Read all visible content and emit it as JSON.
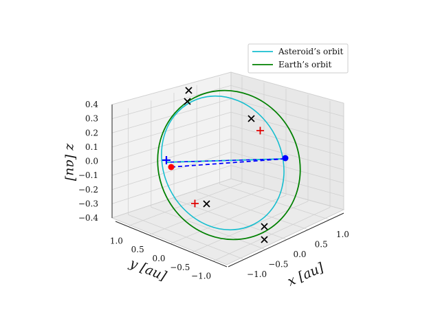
{
  "chart_data": {
    "type": "line",
    "projection": "3d",
    "legend": {
      "placement": "top-right",
      "entries": [
        {
          "label": "Asteroid’s orbit",
          "color": "#17becf"
        },
        {
          "label": "Earth’s orbit",
          "color": "#008000"
        }
      ]
    },
    "axes": {
      "x": {
        "label": "x [au]",
        "ticks": [
          "−1.0",
          "−0.5",
          "0.0",
          "0.5",
          "1.0"
        ],
        "range": [
          -1.0,
          1.0
        ]
      },
      "y": {
        "label": "y [au]",
        "ticks": [
          "−1.0",
          "−0.5",
          "0.0",
          "0.5",
          "1.0"
        ],
        "range": [
          -1.0,
          1.0
        ]
      },
      "z": {
        "label": "z [au]",
        "ticks": [
          "−0.4",
          "−0.3",
          "−0.2",
          "−0.1",
          "0.0",
          "0.1",
          "0.2",
          "0.3",
          "0.4"
        ],
        "range": [
          -0.4,
          0.4
        ]
      }
    },
    "grid": true,
    "series": [
      {
        "name": "Asteroid’s orbit",
        "kind": "ellipse",
        "semi_major": 1.0,
        "semi_minor": 0.85,
        "inclination_deg": 25,
        "color": "#17becf"
      },
      {
        "name": "Earth’s orbit",
        "kind": "circle",
        "radius": 1.0,
        "inclination_deg": 25,
        "color": "#008000"
      }
    ],
    "markers": [
      {
        "kind": "black-x",
        "x": -0.25,
        "y": 0.95,
        "z": 0.42
      },
      {
        "kind": "black-x",
        "x": -0.2,
        "y": 0.8,
        "z": 0.37
      },
      {
        "kind": "black-x",
        "x": 0.65,
        "y": 0.6,
        "z": 0.3
      },
      {
        "kind": "black-x",
        "x": -0.2,
        "y": -0.45,
        "z": -0.25
      },
      {
        "kind": "black-x",
        "x": 0.05,
        "y": -0.95,
        "z": -0.36
      },
      {
        "kind": "black-x",
        "x": 0.05,
        "y": -1.05,
        "z": -0.42
      },
      {
        "kind": "red-plus",
        "x": 0.7,
        "y": 0.45,
        "z": 0.22
      },
      {
        "kind": "red-plus",
        "x": -0.3,
        "y": -0.25,
        "z": -0.27
      },
      {
        "kind": "blue-plus",
        "x": -0.9,
        "y": 0.35,
        "z": 0.05
      },
      {
        "kind": "red-dot",
        "x": -0.85,
        "y": 0.3,
        "z": 0.0
      },
      {
        "kind": "blue-dot",
        "x": 0.95,
        "y": -0.25,
        "z": 0.02
      }
    ],
    "connectors": [
      {
        "from": "blue-plus",
        "to": "blue-dot",
        "style": "dashed",
        "color": "#0000ff"
      },
      {
        "from": "blue-plus",
        "to": "blue-dot",
        "style": "dashed",
        "color": "#17becf"
      },
      {
        "from": "red-dot",
        "to": "blue-dot",
        "style": "dashed",
        "color": "#0000ff"
      }
    ]
  }
}
